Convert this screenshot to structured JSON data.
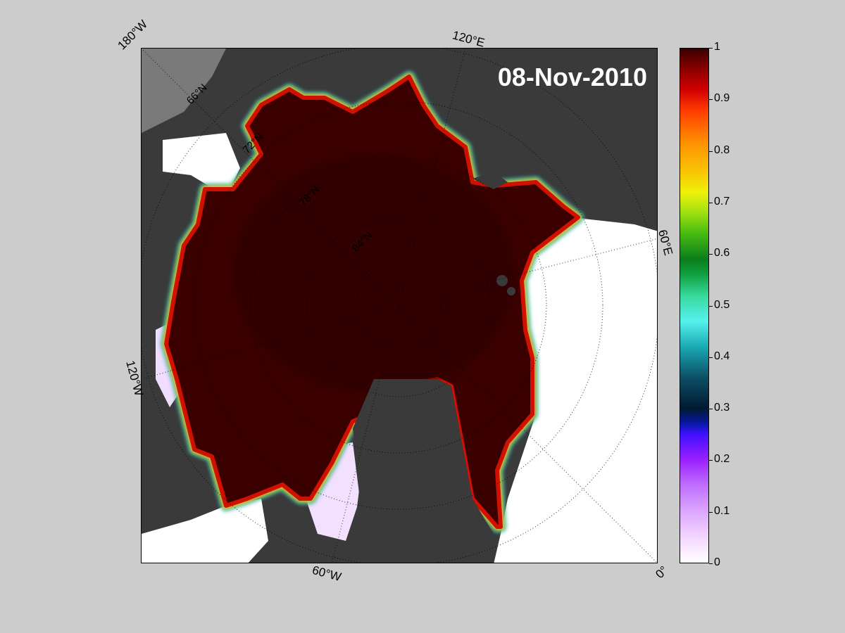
{
  "map": {
    "date": "08-Nov-2010",
    "lon_labels": [
      "180°W",
      "120°E",
      "60°E",
      "0°",
      "60°W",
      "120°W"
    ],
    "lat_labels": [
      "66°N",
      "72°N",
      "78°N",
      "84°N"
    ]
  },
  "colorbar": {
    "min": 0,
    "max": 1,
    "ticks": [
      "0",
      "0.1",
      "0.2",
      "0.3",
      "0.4",
      "0.5",
      "0.6",
      "0.7",
      "0.8",
      "0.9",
      "1"
    ]
  },
  "colors": {
    "background": "#cccccc",
    "land": "#3a3a3a",
    "open_water": "#ffffff",
    "ice_full": "#3a0000"
  }
}
